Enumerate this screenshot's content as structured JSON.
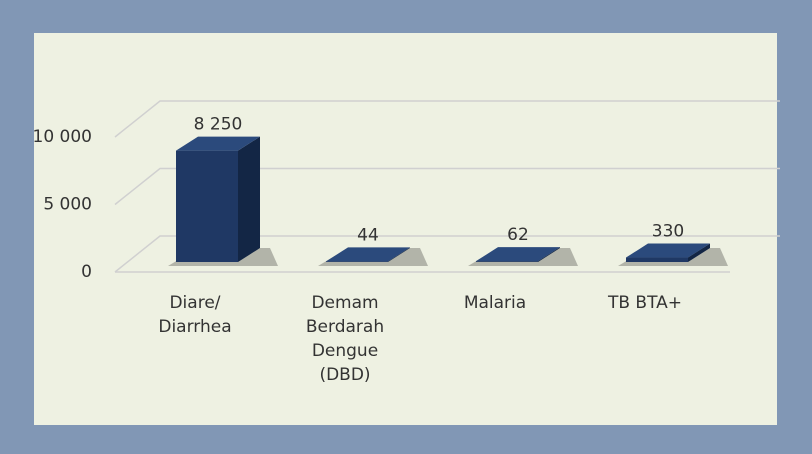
{
  "chart_data": {
    "type": "bar3d",
    "categories": [
      "Diare/ Diarrhea",
      "Demam Berdarah Dengue (DBD)",
      "Malaria",
      "TB BTA+"
    ],
    "values": [
      8250,
      44,
      62,
      330
    ],
    "value_labels": [
      "8 250",
      "44",
      "62",
      "330"
    ],
    "color": "#1f3864",
    "ylim": [
      0,
      10000
    ],
    "yticks": [
      {
        "value": 0,
        "label": "0"
      },
      {
        "value": 5000,
        "label": "5 000"
      },
      {
        "value": 10000,
        "label": "10 000"
      }
    ],
    "grid": true
  }
}
